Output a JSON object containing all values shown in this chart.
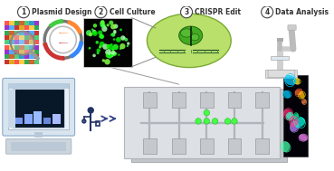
{
  "background_color": "#ffffff",
  "step_labels": [
    "Plasmid Design",
    "Cell Culture",
    "CRISPR Edit",
    "Data Analysis"
  ],
  "step_numbers": [
    "1",
    "2",
    "3",
    "4"
  ],
  "colors": {
    "black": "#000000",
    "white": "#ffffff",
    "gray_light": "#d8dce0",
    "gray_mid": "#aaaaaa",
    "gray_dark": "#666666",
    "green_bright": "#22ff22",
    "green_mid": "#44cc22",
    "green_dark": "#226622",
    "green_bubble": "#aadd66",
    "green_bubble_edge": "#77aa33",
    "cell_black": "#030303",
    "plasmid_gray": "#888888",
    "plasmid_light": "#cccccc",
    "arc_orange": "#ff9933",
    "arc_green": "#44cc44",
    "arc_red": "#cc3333",
    "arc_blue": "#3388ff",
    "chip_face": "#dde0e5",
    "chip_back": "#c5c9ce",
    "chip_channel": "#b0b5bc",
    "chip_res": "#c0c5cc",
    "comp_body": "#d8e4ee",
    "comp_screen_bg": "#e8f0f8",
    "comp_screen_dark": "#0a1a2a",
    "comp_kb": "#ccd4dc",
    "usb_color": "#223366",
    "fl_bg": "#020208",
    "mic_color": "#cccccc",
    "mic_stage": "#e0e8f0"
  }
}
